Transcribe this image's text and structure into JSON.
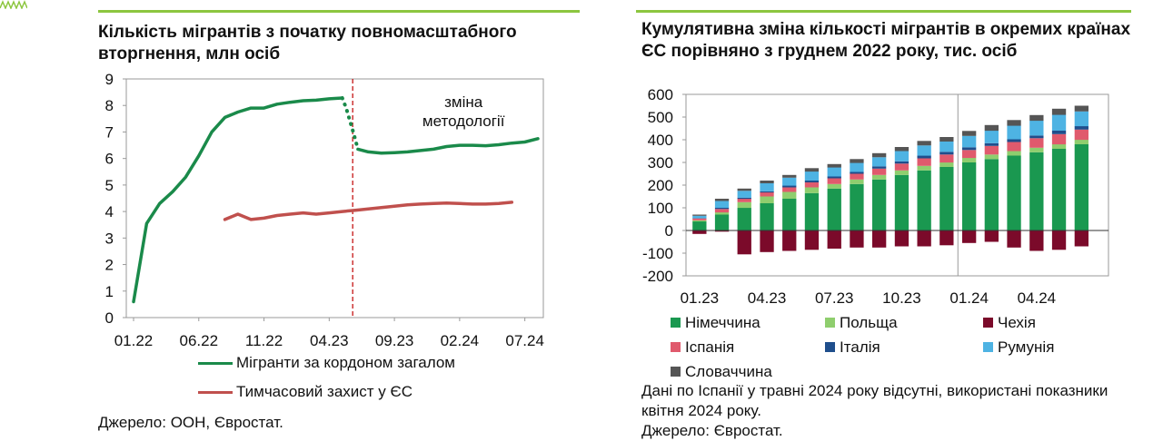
{
  "colors": {
    "accent": "#8cc63f",
    "germany": "#1a9850",
    "poland": "#8fce6e",
    "czechia": "#7b0a2a",
    "spain": "#e05a6d",
    "italy": "#1f4e8c",
    "romania": "#4eb3e3",
    "slovakia": "#555555",
    "migrants_total": "#1a8a4a",
    "temp_protection": "#c0504d",
    "divider": "#c00000"
  },
  "left": {
    "title": "Кількість мігрантів з початку повномасштабного вторгнення, млн осіб",
    "annotation": "зміна методології",
    "source": "Джерело: ООН, Євростат."
  },
  "right": {
    "title": "Кумулятивна зміна кількості мігрантів в окремих країнах ЄС порівняно з груднем 2022 року, тис. осіб",
    "note": "Дані по Іспанії у травні 2024 року відсутні, використані показники квітня 2024 року.",
    "source": "Джерело: Євростат."
  },
  "chart_data": [
    {
      "type": "line",
      "ylim": [
        0,
        9
      ],
      "yticks": [
        "0",
        "1",
        "2",
        "3",
        "4",
        "5",
        "6",
        "7",
        "8",
        "9"
      ],
      "xlim": [
        0,
        31
      ],
      "xticks": [
        {
          "label": "01.22",
          "x": 0
        },
        {
          "label": "06.22",
          "x": 5
        },
        {
          "label": "11.22",
          "x": 10
        },
        {
          "label": "04.23",
          "x": 15
        },
        {
          "label": "09.23",
          "x": 20
        },
        {
          "label": "02.24",
          "x": 25
        },
        {
          "label": "07.24",
          "x": 30
        }
      ],
      "divider_x": 16.8,
      "series": [
        {
          "name": "Мігранти за кордоном загалом",
          "color": "#1a8a4a",
          "x": [
            0,
            1,
            2,
            3,
            4,
            5,
            6,
            7,
            8,
            9,
            10,
            11,
            12,
            13,
            14,
            15,
            16
          ],
          "y": [
            0.6,
            3.55,
            4.3,
            4.75,
            5.3,
            6.1,
            7.0,
            7.55,
            7.75,
            7.9,
            7.9,
            8.05,
            8.12,
            8.18,
            8.2,
            8.25,
            8.28
          ]
        },
        {
          "name": "",
          "color": "#1a8a4a",
          "dotted": true,
          "x": [
            16,
            16.3,
            16.6,
            16.9,
            17.2
          ],
          "y": [
            8.28,
            7.9,
            7.4,
            6.9,
            6.35
          ]
        },
        {
          "name": "",
          "color": "#1a8a4a",
          "x": [
            17.2,
            18,
            19,
            20,
            21,
            22,
            23,
            24,
            25,
            26,
            27,
            28,
            29,
            30,
            31
          ],
          "y": [
            6.35,
            6.25,
            6.2,
            6.22,
            6.25,
            6.3,
            6.35,
            6.45,
            6.5,
            6.5,
            6.48,
            6.52,
            6.58,
            6.62,
            6.75
          ]
        },
        {
          "name": "Тимчасовий захист у ЄС",
          "color": "#c0504d",
          "x": [
            7,
            8,
            9,
            10,
            11,
            12,
            13,
            14,
            15,
            16,
            17,
            18,
            19,
            20,
            21,
            22,
            23,
            24,
            25,
            26,
            27,
            28,
            29
          ],
          "y": [
            3.7,
            3.9,
            3.7,
            3.75,
            3.85,
            3.9,
            3.95,
            3.9,
            3.95,
            4.0,
            4.05,
            4.1,
            4.15,
            4.2,
            4.25,
            4.28,
            4.3,
            4.32,
            4.3,
            4.28,
            4.28,
            4.3,
            4.35
          ]
        }
      ]
    },
    {
      "type": "bar",
      "stacked": true,
      "ylim": [
        -200,
        600
      ],
      "yticks": [
        "-200",
        "-100",
        "0",
        "100",
        "200",
        "300",
        "400",
        "500",
        "600"
      ],
      "xticks": [
        {
          "label": "01.23",
          "i": 0
        },
        {
          "label": "04.23",
          "i": 3
        },
        {
          "label": "07.23",
          "i": 6
        },
        {
          "label": "10.23",
          "i": 9
        },
        {
          "label": "01.24",
          "i": 12
        },
        {
          "label": "04.24",
          "i": 15
        }
      ],
      "divider_index": 11.5,
      "n": 18,
      "series": [
        {
          "name": "Німеччина",
          "key": "germany",
          "values": [
            40,
            70,
            100,
            120,
            140,
            165,
            185,
            205,
            225,
            245,
            265,
            280,
            300,
            315,
            330,
            345,
            360,
            380
          ]
        },
        {
          "name": "Польща",
          "key": "poland",
          "values": [
            5,
            10,
            25,
            30,
            30,
            25,
            20,
            20,
            20,
            20,
            20,
            20,
            20,
            20,
            20,
            20,
            20,
            20
          ]
        },
        {
          "name": "Чехія",
          "key": "czechia",
          "values": [
            -15,
            -5,
            -105,
            -95,
            -90,
            -85,
            -80,
            -75,
            -75,
            -70,
            -70,
            -65,
            -55,
            -50,
            -75,
            -90,
            -85,
            -70
          ]
        },
        {
          "name": "Іспанія",
          "key": "spain",
          "values": [
            8,
            15,
            15,
            18,
            20,
            22,
            25,
            25,
            28,
            30,
            33,
            35,
            35,
            38,
            40,
            42,
            45,
            45
          ]
        },
        {
          "name": "Італія",
          "key": "italy",
          "values": [
            2,
            5,
            5,
            5,
            8,
            8,
            8,
            8,
            10,
            10,
            12,
            12,
            12,
            12,
            12,
            12,
            15,
            15
          ]
        },
        {
          "name": "Румунія",
          "key": "romania",
          "values": [
            10,
            30,
            30,
            35,
            35,
            40,
            40,
            40,
            40,
            45,
            45,
            45,
            50,
            55,
            60,
            65,
            70,
            65
          ]
        },
        {
          "name": "Словаччина",
          "key": "slovakia",
          "values": [
            5,
            10,
            10,
            12,
            12,
            15,
            15,
            17,
            18,
            18,
            20,
            20,
            22,
            25,
            25,
            25,
            27,
            25
          ]
        }
      ]
    }
  ]
}
